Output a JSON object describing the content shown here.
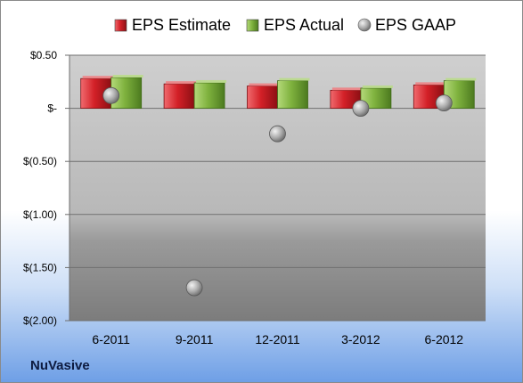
{
  "company": "NuVasive",
  "chart_data": {
    "type": "bar",
    "categories": [
      "6-2011",
      "9-2011",
      "12-2011",
      "3-2012",
      "6-2012"
    ],
    "series": [
      {
        "name": "EPS Estimate",
        "kind": "bar",
        "color": "#d32027",
        "values": [
          0.28,
          0.23,
          0.21,
          0.17,
          0.22
        ]
      },
      {
        "name": "EPS Actual",
        "kind": "bar",
        "color": "#7fb23e",
        "values": [
          0.29,
          0.24,
          0.26,
          0.19,
          0.26
        ]
      },
      {
        "name": "EPS GAAP",
        "kind": "scatter",
        "color": "#a8a8a8",
        "values": [
          0.12,
          -1.69,
          -0.24,
          0.0,
          0.05
        ]
      }
    ],
    "yticks": [
      0.5,
      0.0,
      -0.5,
      -1.0,
      -1.5,
      -2.0
    ],
    "ytick_labels": [
      "$0.50",
      "$-",
      "$(0.50)",
      "$(1.00)",
      "$(1.50)",
      "$(2.00)"
    ],
    "ylim": [
      -2.0,
      0.5
    ],
    "grid": true,
    "legend_position": "top"
  }
}
